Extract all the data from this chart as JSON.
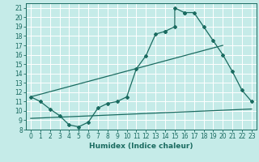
{
  "title": "",
  "xlabel": "Humidex (Indice chaleur)",
  "bg_color": "#c5ebe8",
  "grid_color": "#ffffff",
  "line_color": "#1a6b60",
  "xlim": [
    -0.5,
    23.5
  ],
  "ylim": [
    8,
    21.5
  ],
  "xticks": [
    0,
    1,
    2,
    3,
    4,
    5,
    6,
    7,
    8,
    9,
    10,
    11,
    12,
    13,
    14,
    15,
    16,
    17,
    18,
    19,
    20,
    21,
    22,
    23
  ],
  "yticks": [
    8,
    9,
    10,
    11,
    12,
    13,
    14,
    15,
    16,
    17,
    18,
    19,
    20,
    21
  ],
  "series1_x": [
    0,
    1,
    2,
    3,
    4,
    5,
    6,
    7,
    8,
    9,
    10,
    11,
    12,
    13,
    14,
    14,
    15,
    15,
    16,
    16,
    17,
    18,
    19,
    20,
    21,
    22,
    23
  ],
  "series1_y": [
    11.5,
    11.0,
    10.2,
    9.5,
    8.5,
    8.3,
    8.8,
    10.3,
    10.8,
    11.0,
    11.5,
    14.5,
    15.9,
    18.2,
    18.5,
    18.5,
    19.0,
    21.0,
    20.5,
    20.5,
    20.5,
    19.0,
    17.5,
    16.0,
    14.2,
    12.2,
    11.0
  ],
  "series2_x": [
    0,
    20
  ],
  "series2_y": [
    11.5,
    17.0
  ],
  "series3_x": [
    0,
    23
  ],
  "series3_y": [
    9.2,
    10.2
  ],
  "xlabel_fontsize": 6.5,
  "tick_fontsize": 5.5
}
